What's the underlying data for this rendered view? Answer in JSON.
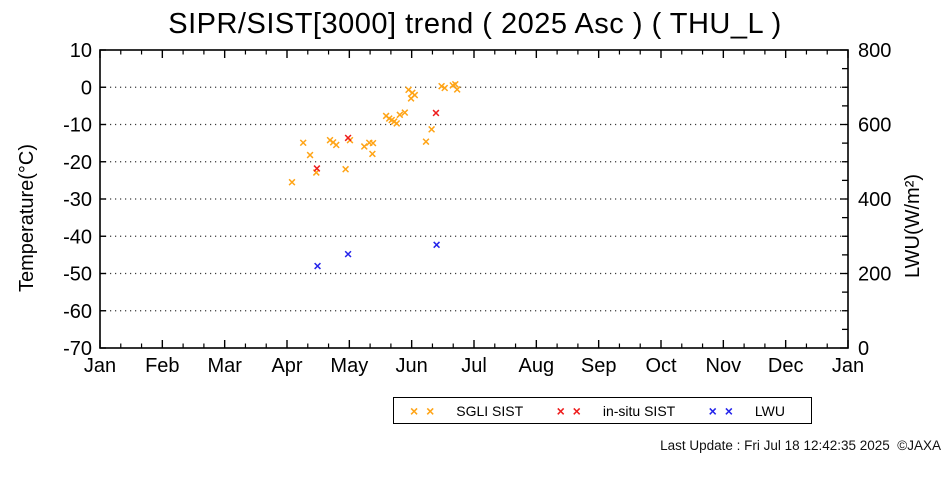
{
  "title": "SIPR/SIST[3000] trend ( 2025 Asc ) ( THU_L )",
  "footer": "Last Update : Fri Jul 18 12:42:35 2025  ©JAXA",
  "legend": [
    {
      "label": "SGLI SIST",
      "marker": "× ×",
      "color": "#ffa416"
    },
    {
      "label": "in-situ SIST",
      "marker": "× ×",
      "color": "#ee1c1c"
    },
    {
      "label": "LWU",
      "marker": "× ×",
      "color": "#2424ea"
    }
  ],
  "chart_data": {
    "type": "scatter",
    "title": "SIPR/SIST[3000] trend ( 2025 Asc ) ( THU_L )",
    "x_axis": {
      "unit": "month_fraction_from_Jan1_2025",
      "range": [
        0,
        12
      ],
      "tick_labels": [
        "Jan",
        "Feb",
        "Mar",
        "Apr",
        "May",
        "Jun",
        "Jul",
        "Aug",
        "Sep",
        "Oct",
        "Nov",
        "Dec",
        "Jan"
      ],
      "minor_divisions_per_month": 3
    },
    "y_left": {
      "label": "Temperature(°C)",
      "min": -70,
      "max": 10,
      "tick_step": 10
    },
    "y_right": {
      "label": "LWU(W/m²)",
      "min": 0,
      "max": 800,
      "label_step": 200,
      "tick_step": 50
    },
    "grid": {
      "horizontal_at_temps": [
        0,
        -10,
        -20,
        -30,
        -40,
        -50,
        -60
      ],
      "style": "dotted"
    },
    "legend_position": "bottom-center-outside",
    "series": [
      {
        "name": "SGLI SIST",
        "color": "#ffa416",
        "marker": "x",
        "axis": "left",
        "points": [
          [
            3.08,
            -25.5
          ],
          [
            3.26,
            -14.9
          ],
          [
            3.37,
            -18.2
          ],
          [
            3.47,
            -22.9
          ],
          [
            3.69,
            -14.2
          ],
          [
            3.74,
            -14.8
          ],
          [
            3.79,
            -15.5
          ],
          [
            3.94,
            -22.0
          ],
          [
            4.01,
            -14.2
          ],
          [
            4.24,
            -15.9
          ],
          [
            4.32,
            -14.9
          ],
          [
            4.37,
            -17.9
          ],
          [
            4.38,
            -15.0
          ],
          [
            4.59,
            -7.7
          ],
          [
            4.64,
            -8.4
          ],
          [
            4.68,
            -8.8
          ],
          [
            4.72,
            -9.2
          ],
          [
            4.76,
            -9.7
          ],
          [
            4.81,
            -7.4
          ],
          [
            4.89,
            -6.8
          ],
          [
            4.95,
            -0.7
          ],
          [
            4.99,
            -3.0
          ],
          [
            5.01,
            -1.5
          ],
          [
            5.05,
            -2.1
          ],
          [
            5.23,
            -14.6
          ],
          [
            5.32,
            -11.3
          ],
          [
            5.48,
            0.3
          ],
          [
            5.53,
            -0.2
          ],
          [
            5.66,
            0.5
          ],
          [
            5.7,
            0.8
          ],
          [
            5.73,
            -0.6
          ]
        ]
      },
      {
        "name": "in-situ SIST",
        "color": "#ee1c1c",
        "marker": "x",
        "axis": "left",
        "points": [
          [
            3.48,
            -21.8
          ],
          [
            3.98,
            -13.6
          ],
          [
            5.39,
            -6.9
          ]
        ]
      },
      {
        "name": "LWU",
        "color": "#2424ea",
        "marker": "x",
        "axis": "right",
        "points": [
          [
            3.49,
            220
          ],
          [
            3.98,
            252
          ],
          [
            5.4,
            277
          ]
        ]
      }
    ]
  }
}
